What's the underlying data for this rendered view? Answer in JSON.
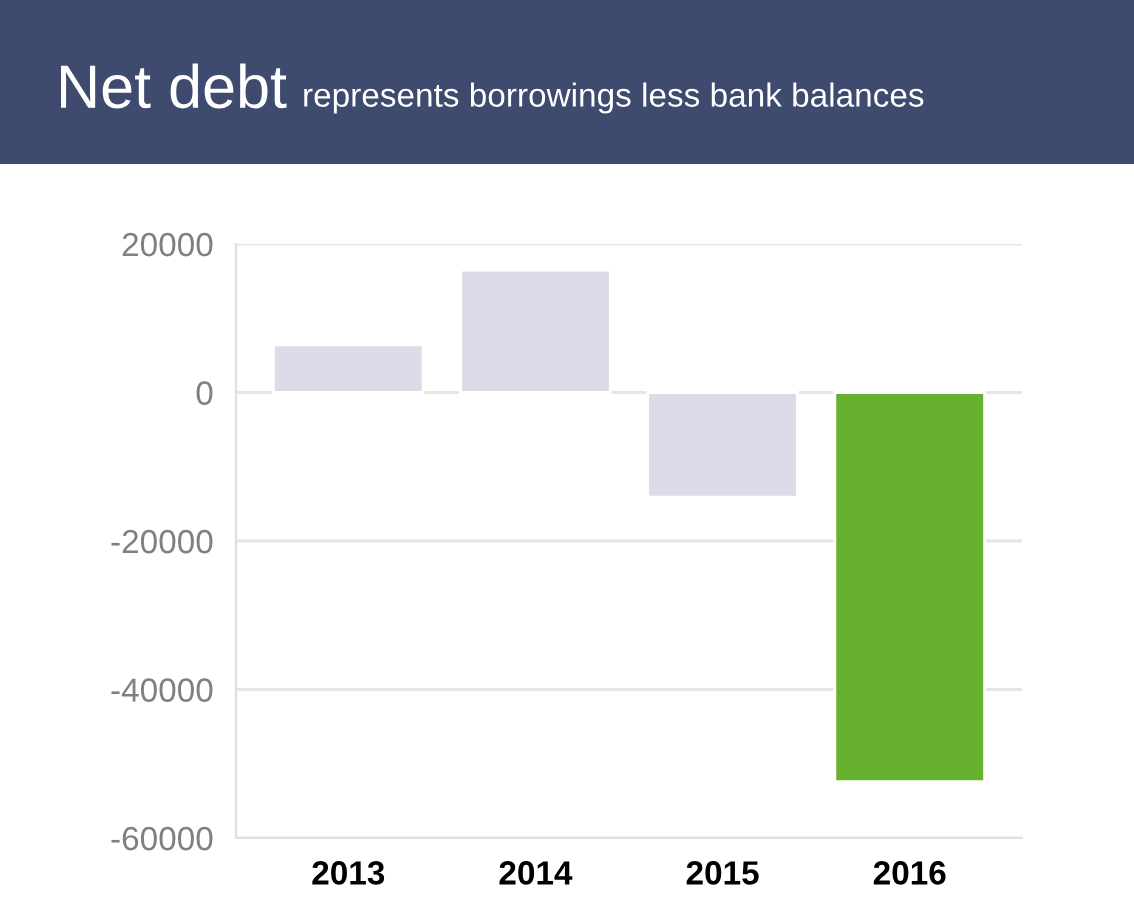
{
  "chart_data": {
    "type": "bar",
    "title": "Net debt",
    "subtitle": "represents borrowings less bank balances",
    "categories": [
      "2013",
      "2014",
      "2015",
      "2016"
    ],
    "values": [
      6400,
      16500,
      -14100,
      -52400
    ],
    "colors": [
      "#dcdce8",
      "#dcdce8",
      "#dcdce8",
      "#66b22e"
    ],
    "ylim": [
      -60000,
      20000
    ],
    "yticks": [
      -60000,
      -40000,
      -20000,
      0,
      20000
    ],
    "grid": "y"
  }
}
